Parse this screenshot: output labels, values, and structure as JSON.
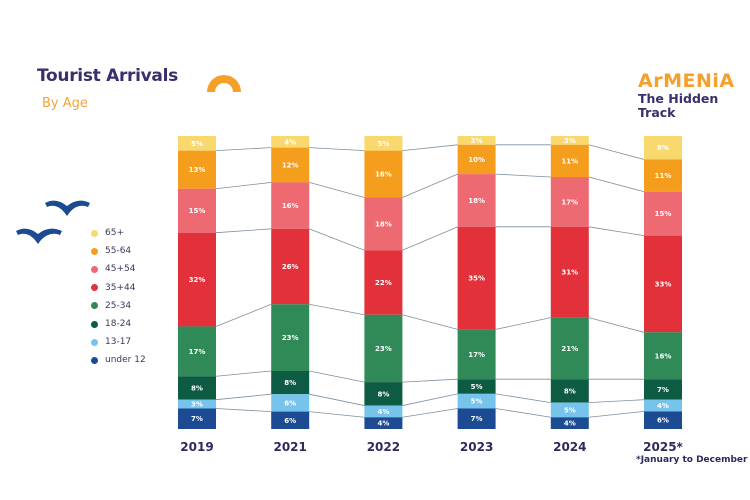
{
  "header": {
    "title": "Tourist Arrivals",
    "subtitle": "By Age"
  },
  "logo": {
    "brand": "ArMENiA",
    "tagline_line1": "The Hidden",
    "tagline_line2": "Track"
  },
  "footnote": "*January to December",
  "colors": {
    "65+": "#f9d86e",
    "55-64": "#f59e1d",
    "45-54": "#ee6a72",
    "35-44": "#e2313a",
    "25-34": "#2f8a57",
    "18-24": "#0e5b43",
    "13-17": "#76c4ec",
    "under 12": "#1d4b93",
    "title": "#3a2f6d",
    "accent": "#f5a02a",
    "connector": "#7f8fa0"
  },
  "chart_data": {
    "type": "bar",
    "stacked": true,
    "normalized": true,
    "title": "Tourist Arrivals",
    "subtitle": "By Age",
    "xlabel": "",
    "ylabel": "",
    "categories": [
      "2019",
      "2021",
      "2022",
      "2023",
      "2024",
      "2025*"
    ],
    "legend_position": "left",
    "series": [
      {
        "name": "65+",
        "color": "#f9d86e",
        "values": [
          5,
          4,
          5,
          3,
          3,
          8
        ]
      },
      {
        "name": "55-64",
        "color": "#f59e1d",
        "values": [
          13,
          12,
          16,
          10,
          11,
          11
        ]
      },
      {
        "name": "45+54",
        "color": "#ee6a72",
        "values": [
          15,
          16,
          18,
          18,
          17,
          15
        ]
      },
      {
        "name": "35+44",
        "color": "#e2313a",
        "values": [
          32,
          26,
          22,
          35,
          31,
          33
        ]
      },
      {
        "name": "25-34",
        "color": "#2f8a57",
        "values": [
          17,
          23,
          23,
          17,
          21,
          16
        ]
      },
      {
        "name": "18-24",
        "color": "#0e5b43",
        "values": [
          8,
          8,
          8,
          5,
          8,
          7
        ]
      },
      {
        "name": "13-17",
        "color": "#76c4ec",
        "values": [
          3,
          6,
          4,
          5,
          5,
          4
        ]
      },
      {
        "name": "under 12",
        "color": "#1d4b93",
        "values": [
          7,
          6,
          4,
          7,
          4,
          6
        ]
      }
    ],
    "value_suffix": "%",
    "annotations": [
      "*January to December"
    ]
  }
}
